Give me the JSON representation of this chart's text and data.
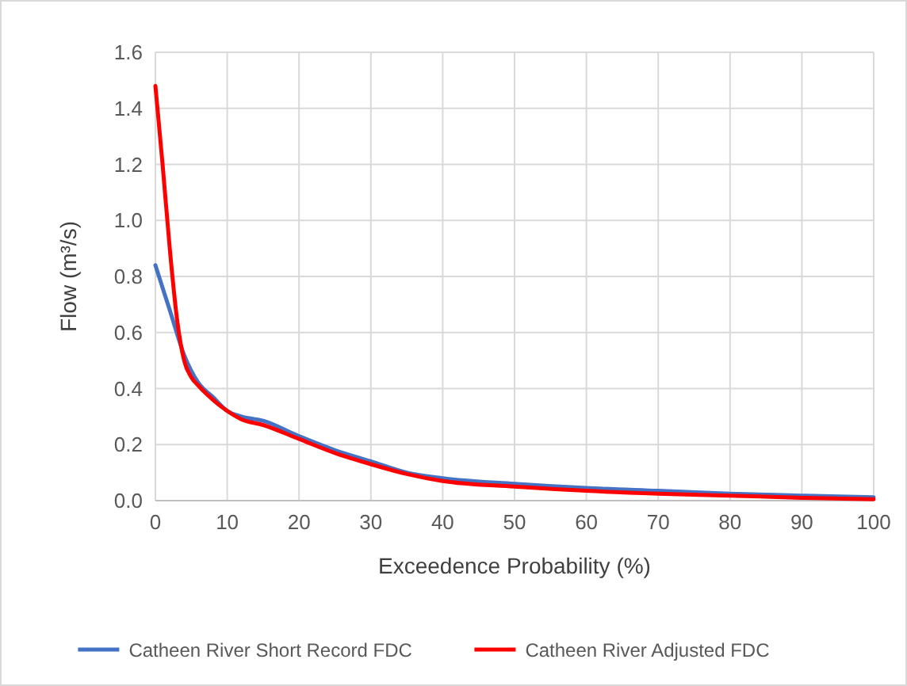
{
  "chart_data": {
    "type": "line",
    "xlabel": "Exceedence Probability (%)",
    "ylabel": "Flow (m³/s)",
    "xlim": [
      0,
      100
    ],
    "xticks": [
      0,
      10,
      20,
      30,
      40,
      50,
      60,
      70,
      80,
      90,
      100
    ],
    "ylim": [
      0,
      1.6
    ],
    "yticks": [
      {
        "value": 0,
        "label": "0.0"
      },
      0.2,
      0.4,
      0.6,
      0.8,
      {
        "value": 1,
        "label": "1.0"
      },
      1.2,
      1.4,
      1.6
    ],
    "grid": true,
    "legend": "bottom",
    "marker": "none",
    "line_style": "solid",
    "series": [
      {
        "name": "Catheen River Short Record FDC",
        "color": "#4472c4",
        "x": [
          0,
          2,
          4,
          6,
          8,
          10,
          12,
          15,
          20,
          25,
          30,
          35,
          40,
          50,
          60,
          70,
          80,
          90,
          100
        ],
        "values": [
          0.84,
          0.68,
          0.52,
          0.42,
          0.37,
          0.32,
          0.3,
          0.285,
          0.23,
          0.18,
          0.14,
          0.1,
          0.08,
          0.06,
          0.045,
          0.035,
          0.025,
          0.018,
          0.012
        ]
      },
      {
        "name": "Catheen River Adjusted FDC",
        "color": "#ff0000",
        "x": [
          0,
          1,
          2,
          3,
          4,
          5,
          6,
          8,
          10,
          12,
          15,
          20,
          25,
          30,
          35,
          40,
          50,
          60,
          70,
          80,
          90,
          100
        ],
        "values": [
          1.48,
          1.2,
          0.9,
          0.65,
          0.5,
          0.44,
          0.41,
          0.36,
          0.32,
          0.29,
          0.27,
          0.22,
          0.17,
          0.13,
          0.095,
          0.07,
          0.05,
          0.035,
          0.025,
          0.018,
          0.01,
          0.005
        ]
      }
    ]
  }
}
